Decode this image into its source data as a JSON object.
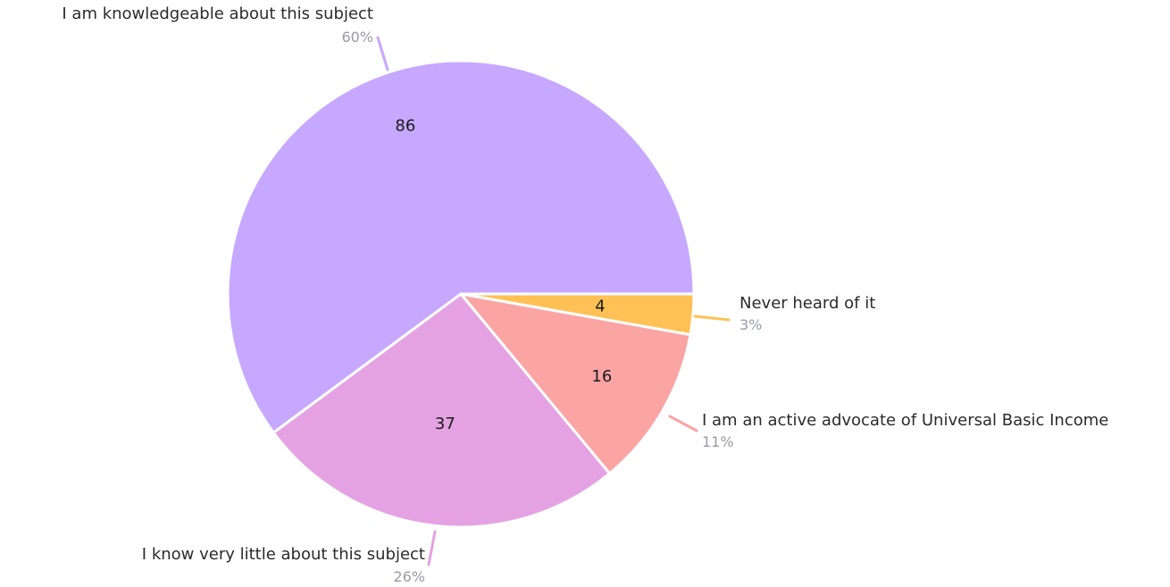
{
  "chart_data": {
    "type": "pie",
    "slices": [
      {
        "name": "Never heard of it",
        "value": 4,
        "percent": "3%",
        "color": "#ffc155"
      },
      {
        "name": "I am an active advocate of Universal Basic Income",
        "value": 16,
        "percent": "11%",
        "color": "#fba4a4"
      },
      {
        "name": "I know very little about this subject",
        "value": 37,
        "percent": "26%",
        "color": "#e4a2e3"
      },
      {
        "name": "I am knowledgeable about this subject",
        "value": 86,
        "percent": "60%",
        "color": "#c7a8ff"
      }
    ],
    "start_angle": "3 o'clock",
    "direction": "clockwise"
  }
}
